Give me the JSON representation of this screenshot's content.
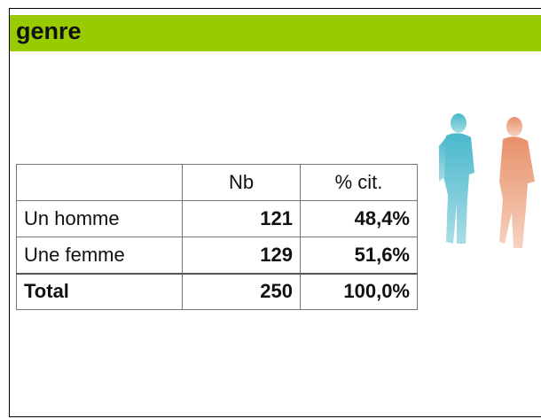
{
  "header": {
    "title": "genre"
  },
  "table": {
    "columns": [
      "Nb",
      "% cit."
    ],
    "rows": [
      [
        "Un homme",
        121,
        "48,4%"
      ],
      [
        "Une femme",
        129,
        "51,6%"
      ],
      [
        "Total",
        250,
        "100,0%"
      ]
    ]
  }
}
